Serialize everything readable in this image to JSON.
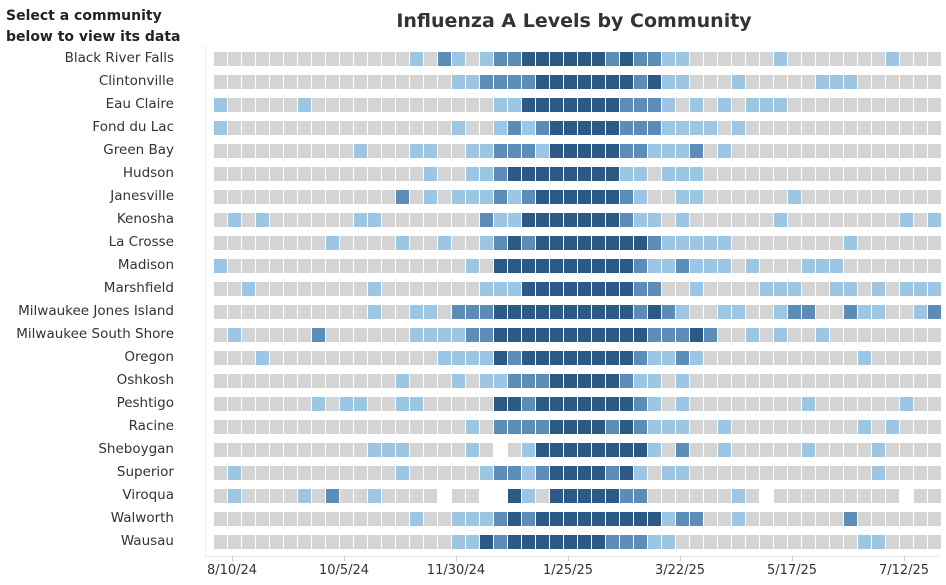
{
  "prompt": "Select a community below to view its data",
  "chart_data": {
    "type": "heatmap",
    "title": "Influenza A Levels by Community",
    "xlabel": "",
    "ylabel": "",
    "x_ticks": [
      "8/10/24",
      "10/5/24",
      "11/30/24",
      "1/25/25",
      "3/22/25",
      "5/17/25",
      "7/12/25"
    ],
    "level_colors": {
      "0": "#d4d4d4",
      "1": "#9dc6e4",
      "2": "#5b8db8",
      "3": "#2c5985",
      "missing": "#ffffff"
    },
    "rows": [
      {
        "name": "Black River Falls",
        "levels": [
          0,
          0,
          0,
          0,
          0,
          0,
          0,
          0,
          0,
          0,
          0,
          0,
          0,
          0,
          1,
          0,
          2,
          1,
          0,
          1,
          2,
          2,
          3,
          3,
          3,
          3,
          3,
          3,
          2,
          3,
          2,
          2,
          1,
          1,
          0,
          0,
          0,
          0,
          0,
          0,
          1,
          0,
          0,
          0,
          0,
          0,
          0,
          0,
          1,
          0,
          0,
          0
        ]
      },
      {
        "name": "Clintonville",
        "levels": [
          0,
          0,
          0,
          0,
          0,
          0,
          0,
          0,
          0,
          0,
          0,
          0,
          0,
          0,
          0,
          0,
          0,
          1,
          1,
          2,
          2,
          2,
          2,
          3,
          3,
          3,
          3,
          3,
          3,
          3,
          2,
          3,
          1,
          1,
          0,
          0,
          0,
          1,
          0,
          0,
          0,
          0,
          0,
          1,
          1,
          1,
          0,
          0,
          0,
          0,
          0,
          0
        ]
      },
      {
        "name": "Eau Claire",
        "levels": [
          1,
          0,
          0,
          0,
          0,
          0,
          1,
          0,
          0,
          0,
          0,
          0,
          0,
          0,
          0,
          0,
          0,
          0,
          0,
          0,
          1,
          1,
          3,
          3,
          3,
          3,
          3,
          3,
          3,
          2,
          2,
          2,
          1,
          0,
          1,
          0,
          1,
          0,
          1,
          1,
          1,
          0,
          0,
          0,
          0,
          0,
          0,
          0,
          0,
          0,
          0,
          0
        ]
      },
      {
        "name": "Fond du Lac",
        "levels": [
          1,
          0,
          0,
          0,
          0,
          0,
          0,
          0,
          0,
          0,
          0,
          0,
          0,
          0,
          0,
          0,
          0,
          1,
          0,
          0,
          1,
          2,
          1,
          2,
          3,
          3,
          3,
          3,
          3,
          2,
          2,
          2,
          1,
          1,
          1,
          1,
          0,
          1,
          0,
          0,
          0,
          0,
          0,
          0,
          0,
          0,
          0,
          0,
          0,
          0,
          0,
          0
        ]
      },
      {
        "name": "Green Bay",
        "levels": [
          0,
          0,
          0,
          0,
          0,
          0,
          0,
          0,
          0,
          0,
          1,
          0,
          0,
          0,
          1,
          1,
          0,
          0,
          1,
          1,
          2,
          2,
          2,
          1,
          3,
          3,
          3,
          3,
          3,
          2,
          2,
          1,
          1,
          1,
          2,
          0,
          1,
          0,
          0,
          0,
          0,
          0,
          0,
          0,
          0,
          0,
          0,
          0,
          0,
          0,
          0,
          0
        ]
      },
      {
        "name": "Hudson",
        "levels": [
          0,
          0,
          0,
          0,
          0,
          0,
          0,
          0,
          0,
          0,
          0,
          0,
          0,
          0,
          0,
          1,
          0,
          0,
          1,
          1,
          2,
          3,
          3,
          3,
          3,
          3,
          3,
          3,
          3,
          1,
          1,
          0,
          1,
          1,
          1,
          0,
          0,
          0,
          0,
          0,
          0,
          0,
          0,
          0,
          0,
          0,
          0,
          0,
          0,
          0,
          0,
          0
        ]
      },
      {
        "name": "Janesville",
        "levels": [
          0,
          0,
          0,
          0,
          0,
          0,
          0,
          0,
          0,
          0,
          0,
          0,
          0,
          2,
          0,
          1,
          0,
          1,
          1,
          1,
          2,
          1,
          2,
          3,
          3,
          3,
          3,
          3,
          3,
          2,
          1,
          0,
          0,
          1,
          1,
          0,
          0,
          0,
          0,
          0,
          0,
          1,
          0,
          0,
          0,
          0,
          0,
          0,
          0,
          0,
          0,
          0
        ]
      },
      {
        "name": "Kenosha",
        "levels": [
          0,
          1,
          0,
          1,
          0,
          0,
          0,
          0,
          0,
          0,
          1,
          1,
          0,
          0,
          0,
          0,
          0,
          0,
          0,
          2,
          1,
          1,
          3,
          3,
          3,
          3,
          3,
          3,
          3,
          2,
          1,
          1,
          0,
          1,
          0,
          0,
          0,
          0,
          0,
          0,
          1,
          0,
          0,
          0,
          0,
          0,
          0,
          0,
          0,
          1,
          0,
          1
        ]
      },
      {
        "name": "La Crosse",
        "levels": [
          0,
          0,
          0,
          0,
          0,
          0,
          0,
          0,
          1,
          0,
          0,
          0,
          0,
          1,
          0,
          0,
          1,
          0,
          0,
          1,
          2,
          3,
          2,
          3,
          3,
          3,
          3,
          3,
          3,
          3,
          3,
          2,
          1,
          1,
          1,
          1,
          1,
          0,
          0,
          0,
          0,
          0,
          0,
          0,
          0,
          1,
          0,
          0,
          0,
          0,
          0,
          0
        ]
      },
      {
        "name": "Madison",
        "levels": [
          1,
          0,
          0,
          0,
          0,
          0,
          0,
          0,
          0,
          0,
          0,
          0,
          0,
          0,
          0,
          0,
          0,
          0,
          1,
          0,
          3,
          3,
          3,
          3,
          3,
          3,
          3,
          3,
          3,
          3,
          2,
          1,
          1,
          2,
          1,
          1,
          1,
          0,
          1,
          0,
          0,
          0,
          1,
          1,
          1,
          0,
          0,
          0,
          0,
          0,
          0,
          0
        ]
      },
      {
        "name": "Marshfield",
        "levels": [
          0,
          0,
          1,
          0,
          0,
          0,
          0,
          0,
          0,
          0,
          0,
          1,
          0,
          0,
          0,
          0,
          0,
          0,
          0,
          1,
          1,
          1,
          3,
          3,
          3,
          3,
          3,
          3,
          3,
          3,
          2,
          2,
          0,
          0,
          1,
          0,
          0,
          0,
          0,
          1,
          1,
          1,
          0,
          0,
          1,
          1,
          0,
          1,
          0,
          1,
          1,
          1
        ]
      },
      {
        "name": "Milwaukee Jones Island",
        "levels": [
          0,
          0,
          0,
          0,
          0,
          0,
          0,
          0,
          0,
          0,
          0,
          1,
          0,
          0,
          1,
          1,
          0,
          2,
          2,
          2,
          3,
          3,
          3,
          3,
          3,
          3,
          3,
          3,
          3,
          3,
          2,
          3,
          2,
          1,
          0,
          0,
          1,
          1,
          0,
          0,
          1,
          2,
          2,
          0,
          0,
          2,
          1,
          1,
          0,
          0,
          1,
          2
        ]
      },
      {
        "name": "Milwaukee South Shore",
        "levels": [
          0,
          1,
          0,
          0,
          0,
          0,
          0,
          2,
          0,
          0,
          0,
          0,
          0,
          0,
          1,
          1,
          1,
          1,
          2,
          2,
          3,
          3,
          3,
          3,
          3,
          3,
          3,
          3,
          3,
          3,
          3,
          2,
          2,
          2,
          3,
          2,
          0,
          0,
          1,
          0,
          1,
          0,
          0,
          1,
          0,
          0,
          0,
          0,
          0,
          0,
          0,
          0
        ]
      },
      {
        "name": "Oregon",
        "levels": [
          0,
          0,
          0,
          1,
          0,
          0,
          0,
          0,
          0,
          0,
          0,
          0,
          0,
          0,
          0,
          0,
          1,
          1,
          1,
          1,
          3,
          2,
          3,
          3,
          3,
          3,
          3,
          3,
          3,
          3,
          2,
          1,
          1,
          2,
          1,
          0,
          0,
          0,
          0,
          0,
          0,
          0,
          0,
          0,
          0,
          0,
          1,
          0,
          0,
          0,
          0,
          0
        ]
      },
      {
        "name": "Oshkosh",
        "levels": [
          0,
          0,
          0,
          0,
          0,
          0,
          0,
          0,
          0,
          0,
          0,
          0,
          0,
          1,
          0,
          0,
          0,
          1,
          0,
          1,
          1,
          2,
          2,
          2,
          3,
          3,
          3,
          3,
          3,
          2,
          1,
          1,
          0,
          1,
          0,
          0,
          0,
          0,
          0,
          0,
          0,
          0,
          0,
          0,
          0,
          0,
          0,
          0,
          0,
          0,
          0,
          0
        ]
      },
      {
        "name": "Peshtigo",
        "levels": [
          0,
          0,
          0,
          0,
          0,
          0,
          0,
          1,
          0,
          1,
          1,
          0,
          0,
          1,
          1,
          0,
          0,
          0,
          0,
          0,
          3,
          3,
          2,
          3,
          3,
          3,
          3,
          3,
          3,
          3,
          2,
          1,
          0,
          1,
          0,
          0,
          0,
          0,
          0,
          0,
          0,
          0,
          1,
          0,
          0,
          0,
          0,
          0,
          0,
          1,
          0,
          0
        ]
      },
      {
        "name": "Racine",
        "levels": [
          0,
          0,
          0,
          0,
          0,
          0,
          0,
          0,
          0,
          0,
          0,
          0,
          0,
          0,
          0,
          0,
          0,
          0,
          1,
          0,
          2,
          2,
          2,
          2,
          3,
          3,
          3,
          3,
          2,
          3,
          2,
          1,
          1,
          1,
          0,
          0,
          1,
          0,
          0,
          0,
          0,
          0,
          0,
          0,
          0,
          0,
          1,
          0,
          1,
          0,
          0,
          0
        ]
      },
      {
        "name": "Sheboygan",
        "levels": [
          0,
          0,
          0,
          0,
          0,
          0,
          0,
          0,
          0,
          0,
          0,
          1,
          1,
          1,
          0,
          0,
          0,
          0,
          1,
          0,
          null,
          0,
          1,
          3,
          3,
          3,
          3,
          3,
          3,
          3,
          3,
          1,
          0,
          2,
          0,
          0,
          1,
          0,
          0,
          0,
          0,
          0,
          1,
          0,
          0,
          0,
          0,
          1,
          0,
          0,
          0,
          0
        ]
      },
      {
        "name": "Superior",
        "levels": [
          0,
          1,
          0,
          0,
          0,
          0,
          0,
          0,
          0,
          0,
          0,
          0,
          0,
          1,
          0,
          0,
          0,
          0,
          0,
          1,
          2,
          2,
          1,
          2,
          3,
          3,
          3,
          3,
          2,
          3,
          1,
          0,
          1,
          1,
          0,
          0,
          0,
          0,
          0,
          0,
          0,
          0,
          0,
          0,
          0,
          0,
          0,
          1,
          0,
          0,
          0,
          0
        ]
      },
      {
        "name": "Viroqua",
        "levels": [
          0,
          1,
          0,
          0,
          0,
          0,
          1,
          0,
          2,
          0,
          0,
          1,
          0,
          0,
          0,
          0,
          null,
          0,
          0,
          null,
          null,
          3,
          1,
          0,
          3,
          3,
          3,
          3,
          3,
          2,
          2,
          0,
          0,
          0,
          0,
          0,
          0,
          1,
          0,
          null,
          0,
          0,
          0,
          0,
          0,
          0,
          0,
          0,
          0,
          null,
          0,
          0
        ]
      },
      {
        "name": "Walworth",
        "levels": [
          0,
          0,
          0,
          0,
          0,
          0,
          0,
          0,
          0,
          0,
          0,
          0,
          0,
          0,
          1,
          0,
          0,
          1,
          1,
          1,
          2,
          3,
          2,
          3,
          3,
          3,
          3,
          3,
          3,
          3,
          3,
          3,
          1,
          2,
          2,
          0,
          0,
          1,
          0,
          0,
          0,
          0,
          0,
          0,
          0,
          2,
          0,
          0,
          0,
          0,
          0,
          0
        ]
      },
      {
        "name": "Wausau",
        "levels": [
          0,
          0,
          0,
          0,
          0,
          0,
          0,
          0,
          0,
          0,
          0,
          0,
          0,
          0,
          0,
          0,
          0,
          1,
          1,
          3,
          2,
          3,
          3,
          3,
          3,
          3,
          3,
          3,
          2,
          2,
          2,
          1,
          1,
          0,
          0,
          0,
          0,
          0,
          0,
          0,
          0,
          0,
          0,
          0,
          0,
          0,
          1,
          1,
          0,
          0,
          0,
          0
        ]
      }
    ]
  }
}
